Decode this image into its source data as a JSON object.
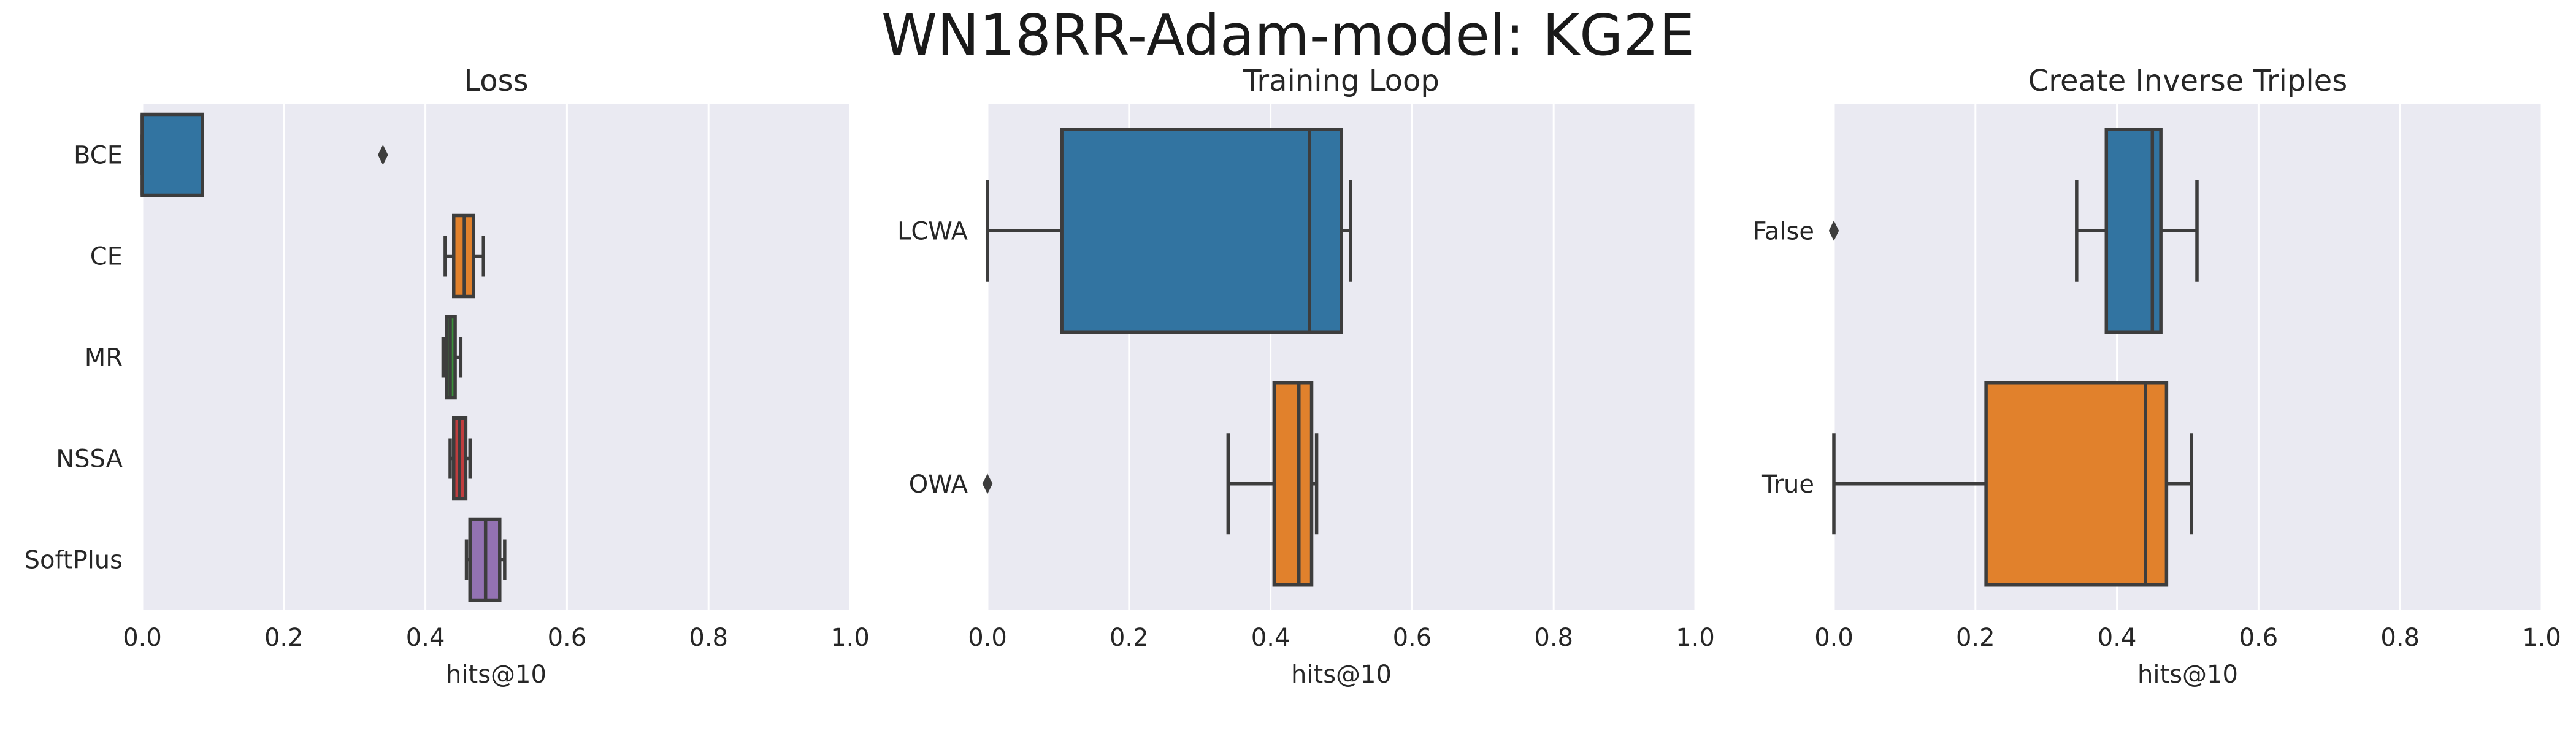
{
  "suptitle": "WN18RR-Adam-model: KG2E",
  "style": {
    "background": "#eaeaf2",
    "grid": "#ffffff",
    "edge": "#3d3d3d",
    "palette": [
      "#3274a1",
      "#e1812c",
      "#3a923a",
      "#c03d3e",
      "#9372b2"
    ]
  },
  "chart_data": [
    {
      "type": "box",
      "orientation": "horizontal",
      "title": "Loss",
      "xlabel": "hits@10",
      "ylabel": "",
      "xlim": [
        0,
        1.0
      ],
      "xticks": [
        "0.0",
        "0.2",
        "0.4",
        "0.6",
        "0.8",
        "1.0"
      ],
      "grid": true,
      "categories": [
        "BCE",
        "CE",
        "MR",
        "NSSA",
        "SoftPlus"
      ],
      "boxes": [
        {
          "label": "BCE",
          "color": "#3274a1",
          "whislo": 0.0,
          "q1": 0.0,
          "med": 0.0,
          "q3": 0.085,
          "whishi": 0.085,
          "fliers": [
            0.34
          ]
        },
        {
          "label": "CE",
          "color": "#e1812c",
          "whislo": 0.428,
          "q1": 0.44,
          "med": 0.455,
          "q3": 0.468,
          "whishi": 0.482,
          "fliers": []
        },
        {
          "label": "MR",
          "color": "#3a923a",
          "whislo": 0.425,
          "q1": 0.43,
          "med": 0.435,
          "q3": 0.442,
          "whishi": 0.45,
          "fliers": []
        },
        {
          "label": "NSSA",
          "color": "#c03d3e",
          "whislo": 0.435,
          "q1": 0.44,
          "med": 0.448,
          "q3": 0.457,
          "whishi": 0.463,
          "fliers": []
        },
        {
          "label": "SoftPlus",
          "color": "#9372b2",
          "whislo": 0.458,
          "q1": 0.463,
          "med": 0.485,
          "q3": 0.505,
          "whishi": 0.512,
          "fliers": []
        }
      ]
    },
    {
      "type": "box",
      "orientation": "horizontal",
      "title": "Training Loop",
      "xlabel": "hits@10",
      "ylabel": "",
      "xlim": [
        0,
        1.0
      ],
      "xticks": [
        "0.0",
        "0.2",
        "0.4",
        "0.6",
        "0.8",
        "1.0"
      ],
      "grid": true,
      "categories": [
        "LCWA",
        "OWA"
      ],
      "boxes": [
        {
          "label": "LCWA",
          "color": "#3274a1",
          "whislo": 0.0,
          "q1": 0.105,
          "med": 0.455,
          "q3": 0.5,
          "whishi": 0.513,
          "fliers": []
        },
        {
          "label": "OWA",
          "color": "#e1812c",
          "whislo": 0.34,
          "q1": 0.405,
          "med": 0.44,
          "q3": 0.458,
          "whishi": 0.465,
          "fliers": [
            0.0
          ]
        }
      ]
    },
    {
      "type": "box",
      "orientation": "horizontal",
      "title": "Create Inverse Triples",
      "xlabel": "hits@10",
      "ylabel": "",
      "xlim": [
        0,
        1.0
      ],
      "xticks": [
        "0.0",
        "0.2",
        "0.4",
        "0.6",
        "0.8",
        "1.0"
      ],
      "grid": true,
      "categories": [
        "False",
        "True"
      ],
      "boxes": [
        {
          "label": "False",
          "color": "#3274a1",
          "whislo": 0.343,
          "q1": 0.385,
          "med": 0.45,
          "q3": 0.462,
          "whishi": 0.513,
          "fliers": [
            0.0
          ]
        },
        {
          "label": "True",
          "color": "#e1812c",
          "whislo": 0.0,
          "q1": 0.215,
          "med": 0.44,
          "q3": 0.47,
          "whishi": 0.505,
          "fliers": []
        }
      ]
    }
  ]
}
